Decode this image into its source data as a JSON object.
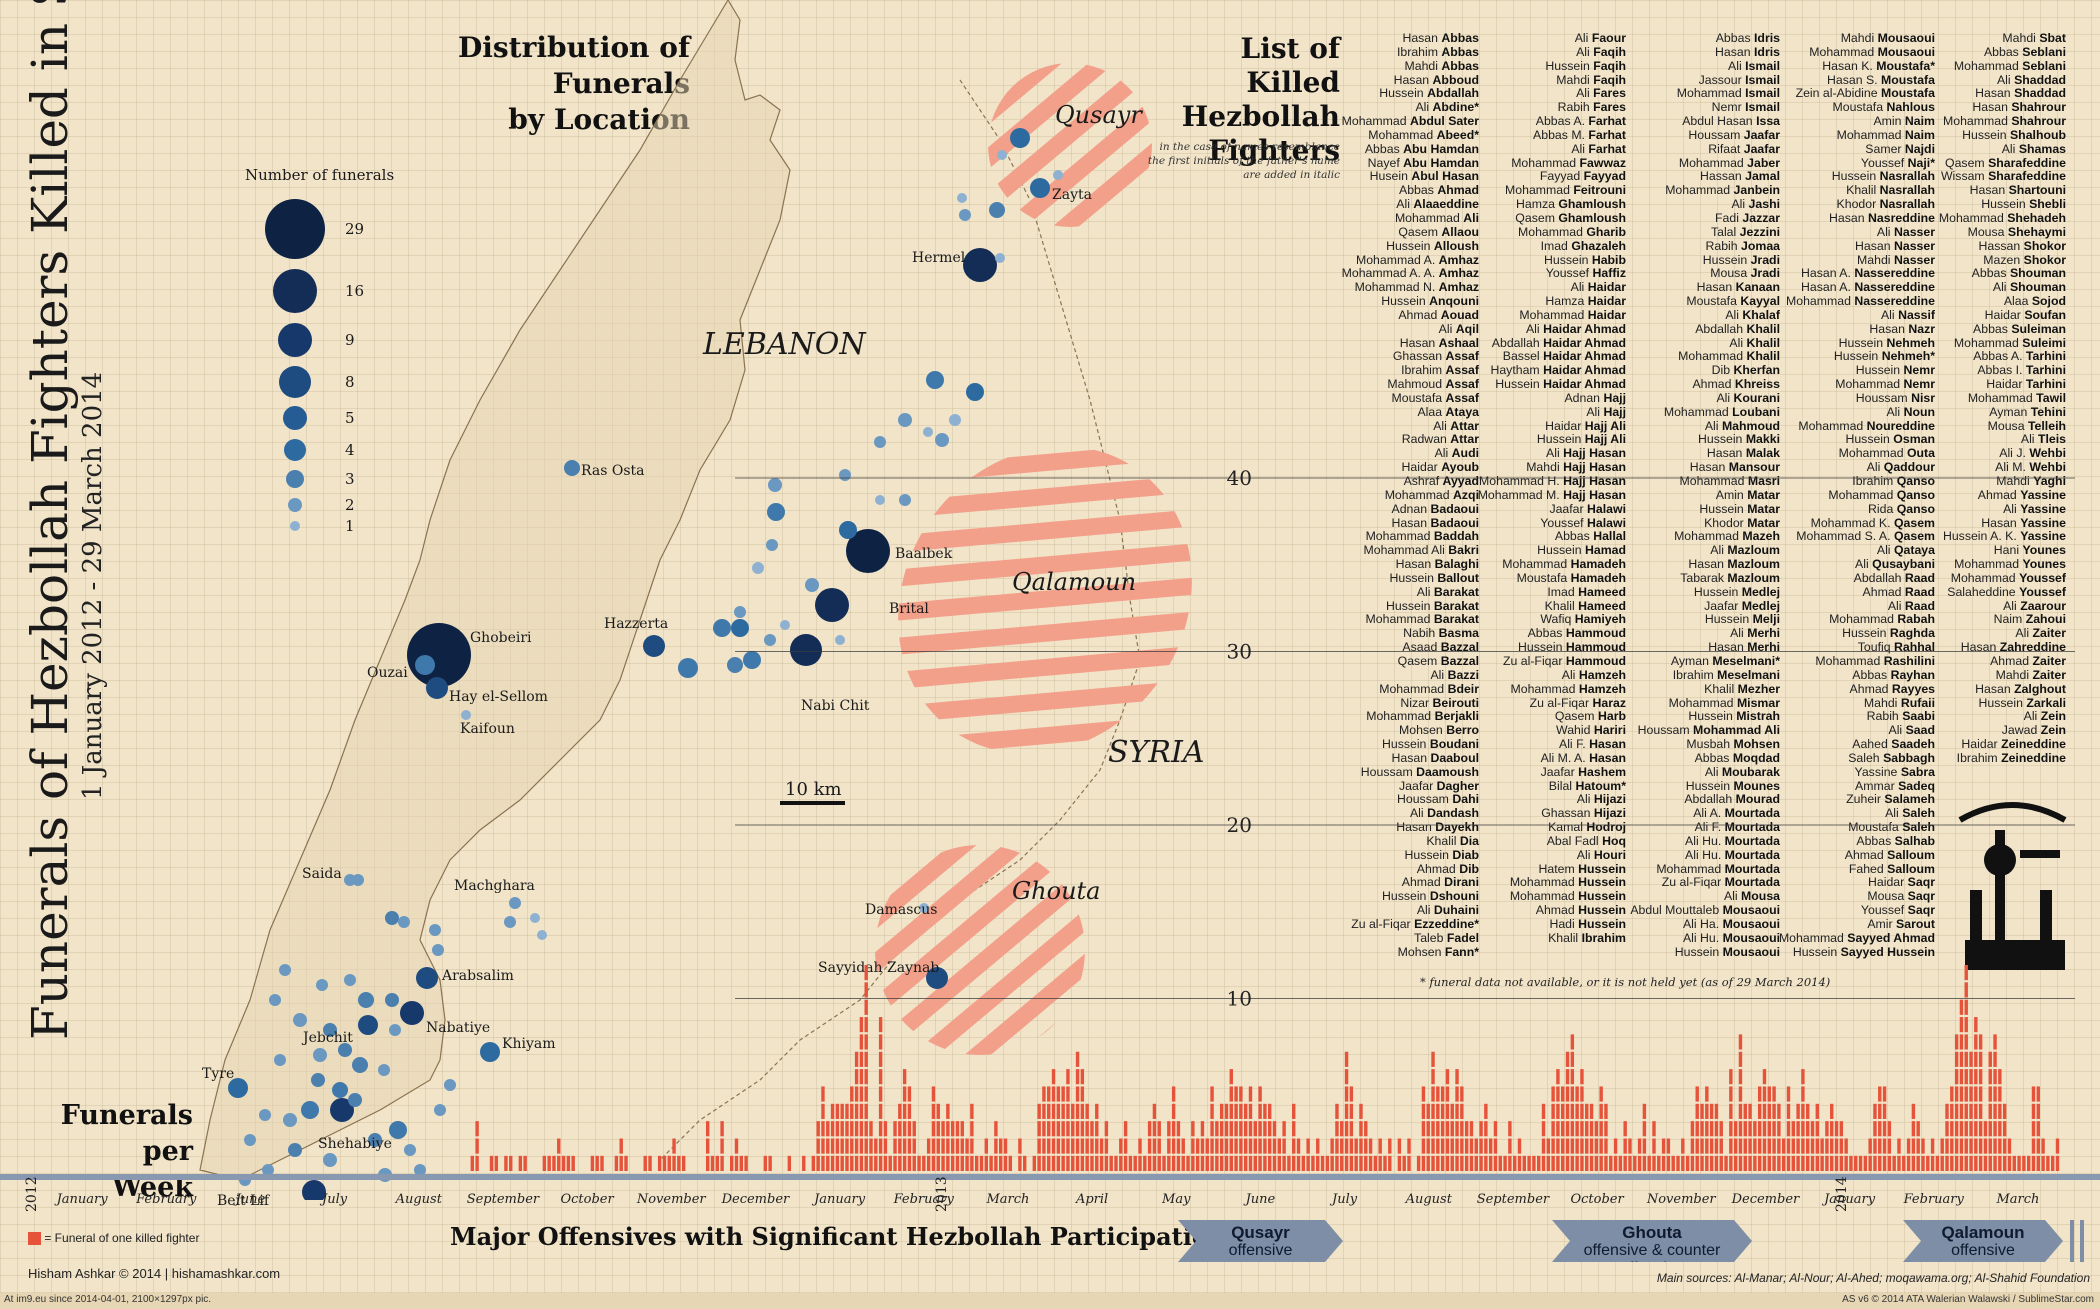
{
  "title": "Funerals of Hezbollah Fighters Killed in Syria",
  "subtitle": "1 January 2012 - 29 March 2014",
  "map": {
    "heading_line1": "Distribution of Funerals",
    "heading_line2": "by Location",
    "legend_title": "Number of funerals",
    "legend_values": [
      "29",
      "16",
      "9",
      "8",
      "5",
      "4",
      "3",
      "2",
      "1"
    ],
    "country_labels": [
      "LEBANON",
      "SYRIA"
    ],
    "region_labels": [
      "Qusayr",
      "Qalamoun",
      "Ghouta"
    ],
    "place_labels": [
      "Zayta",
      "Hermel",
      "Ras Osta",
      "Baalbek",
      "Hazzerta",
      "Brital",
      "Ghobeiri",
      "Ouzai",
      "Hay el-Sellom",
      "Kaifoun",
      "Nabi Chit",
      "Damascus",
      "Sayyidah Zaynab",
      "Saida",
      "Machghara",
      "Arabsalim",
      "Jebchit",
      "Nabatiye",
      "Khiyam",
      "Tyre",
      "Shehabiye",
      "Beit Lif"
    ],
    "scale_label": "10 km"
  },
  "list": {
    "heading_line1": "List of Killed",
    "heading_line2": "Hezbollah",
    "heading_line3": "Fighters",
    "note_line1": "in the case of names resemblance",
    "note_line2": "the first initials of the father's name",
    "note_line3": "are added in italic",
    "footnote": "* funeral data not available, or it is not held yet (as of 29 March 2014)",
    "columns": [
      [
        "Hasan|Abbas",
        "Ibrahim|Abbas",
        "Mahdi|Abbas",
        "Hasan|Abboud",
        "Hussein|Abdallah",
        "Ali|Abdine|*",
        "Mohammad|Abdul Sater",
        "Mohammad|Abeed|*",
        "Abbas|Abu Hamdan",
        "Nayef|Abu Hamdan",
        "Husein|Abul Hasan",
        "Abbas|Ahmad",
        "Ali|Alaaeddine",
        "Mohammad|Ali",
        "Qasem|Allaou",
        "Hussein|Alloush",
        "Mohammad A.|Amhaz",
        "Mohammad A. A.|Amhaz",
        "Mohammad N.|Amhaz",
        "Hussein|Anqouni",
        "Ahmad|Aouad",
        "Ali|Aqil",
        "Hasan|Ashaal",
        "Ghassan|Assaf",
        "Ibrahim|Assaf",
        "Mahmoud|Assaf",
        "Moustafa|Assaf",
        "Alaa|Ataya",
        "Ali|Attar",
        "Radwan|Attar",
        "Ali|Audi",
        "Haidar|Ayoub",
        "Ashraf|Ayyad",
        "Mohammad|Azqi",
        "Adnan|Badaoui",
        "Hasan|Badaoui",
        "Mohammad|Baddah",
        "Mohammad Ali|Bakri",
        "Hasan|Balaghi",
        "Hussein|Ballout",
        "Ali|Barakat",
        "Hussein|Barakat",
        "Mohammad|Barakat",
        "Nabih|Basma",
        "Asaad|Bazzal",
        "Qasem|Bazzal",
        "Ali|Bazzi",
        "Mohammad|Bdeir",
        "Nizar|Beirouti",
        "Mohammad|Berjakli",
        "Mohsen|Berro",
        "Hussein|Boudani",
        "Hasan|Daaboul",
        "Houssam|Daamoush",
        "Jaafar|Dagher",
        "Houssam|Dahi",
        "Ali|Dandash",
        "Hasan|Dayekh",
        "Khalil|Dia",
        "Hussein|Diab",
        "Ahmad|Dib",
        "Ahmad|Dirani",
        "Hussein|Dshouni",
        "Ali|Duhaini",
        "Zu al-Fiqar|Ezzeddine|*",
        "Taleb|Fadel",
        "Mohsen|Fann|*"
      ],
      [
        "Ali|Faour",
        "Ali|Faqih",
        "Hussein|Faqih",
        "Mahdi|Faqih",
        "Ali|Fares",
        "Rabih|Fares",
        "Abbas A.|Farhat",
        "Abbas M.|Farhat",
        "Ali|Farhat",
        "Mohammad|Fawwaz",
        "Fayyad|Fayyad",
        "Mohammad|Feitrouni",
        "Hamza|Ghamloush",
        "Qasem|Ghamloush",
        "Mohammad|Gharib",
        "Imad|Ghazaleh",
        "Hussein|Habib",
        "Youssef|Haffiz",
        "Ali|Haidar",
        "Hamza|Haidar",
        "Mohammad|Haidar",
        "Ali|Haidar Ahmad",
        "Abdallah|Haidar Ahmad",
        "Bassel|Haidar Ahmad",
        "Haytham|Haidar Ahmad",
        "Hussein|Haidar Ahmad",
        "Adnan|Hajj",
        "Ali|Hajj",
        "Haidar|Hajj Ali",
        "Hussein|Hajj Ali",
        "Ali|Hajj Hasan",
        "Mahdi|Hajj Hasan",
        "Mohammad H.|Hajj Hasan",
        "Mohammad M.|Hajj Hasan",
        "Jaafar|Halawi",
        "Youssef|Halawi",
        "Abbas|Hallal",
        "Hussein|Hamad",
        "Mohammad|Hamadeh",
        "Moustafa|Hamadeh",
        "Imad|Hameed",
        "Khalil|Hameed",
        "Wafiq|Hamiyeh",
        "Abbas|Hammoud",
        "Hussein|Hammoud",
        "Zu al-Fiqar|Hammoud",
        "Ali|Hamzeh",
        "Mohammad|Hamzeh",
        "Zu al-Fiqar|Haraz",
        "Qasem|Harb",
        "Wahid|Hariri",
        "Ali F.|Hasan",
        "Ali M. A.|Hasan",
        "Jaafar|Hashem",
        "Bilal|Hatoum|*",
        "Ali|Hijazi",
        "Ghassan|Hijazi",
        "Kamal|Hodroj",
        "Abal Fadl|Hoq",
        "Ali|Houri",
        "Hatem|Hussein",
        "Mohammad|Hussein",
        "Mohammad|Hussein",
        "Ahmad|Hussein",
        "Hadi|Hussein",
        "Khalil|Ibrahim"
      ],
      [
        "Abbas|Idris",
        "Hasan|Idris",
        "Ali|Ismail",
        "Jassour|Ismail",
        "Mohammad|Ismail",
        "Nemr|Ismail",
        "Abdul Hasan|Issa",
        "Houssam|Jaafar",
        "Rifaat|Jaafar",
        "Mohammad|Jaber",
        "Hassan|Jamal",
        "Mohammad|Janbein",
        "Ali|Jashi",
        "Fadi|Jazzar",
        "Talal|Jezzini",
        "Rabih|Jomaa",
        "Hussein|Jradi",
        "Mousa|Jradi",
        "Hasan|Kanaan",
        "Moustafa|Kayyal",
        "Ali|Khalaf",
        "Abdallah|Khalil",
        "Ali|Khalil",
        "Mohammad|Khalil",
        "Dib|Kherfan",
        "Ahmad|Khreiss",
        "Ali|Kourani",
        "Mohammad|Loubani",
        "Ali|Mahmoud",
        "Hussein|Makki",
        "Hasan|Malak",
        "Hasan|Mansour",
        "Mohammad|Masri",
        "Amin|Matar",
        "Hussein|Matar",
        "Khodor|Matar",
        "Mohammad|Mazeh",
        "Ali|Mazloum",
        "Hasan|Mazloum",
        "Tabarak|Mazloum",
        "Hussein|Medlej",
        "Jaafar|Medlej",
        "Hussein|Melji",
        "Ali|Merhi",
        "Hasan|Merhi",
        "Ayman|Meselmani|*",
        "Ibrahim|Meselmani",
        "Khalil|Mezher",
        "Mohammad|Mismar",
        "Hussein|Mistrah",
        "Houssam|Mohammad Ali",
        "Musbah|Mohsen",
        "Abbas|Moqdad",
        "Ali|Moubarak",
        "Hussein|Mounes",
        "Abdallah|Mourad",
        "Ali A.|Mourtada",
        "Ali F.|Mourtada",
        "Ali Hu.|Mourtada",
        "Ali Hu.|Mourtada",
        "Mohammad|Mourtada",
        "Zu al-Fiqar|Mourtada",
        "Ali|Mousa",
        "Abdul Mouttaleb|Mousaoui",
        "Ali Ha.|Mousaoui",
        "Ali Hu.|Mousaoui",
        "Hussein|Mousaoui"
      ],
      [
        "Mahdi|Mousaoui",
        "Mohammad|Mousaoui",
        "Hasan K.|Moustafa|*",
        "Hasan S.|Moustafa",
        "Zein al-Abidine|Moustafa",
        "Moustafa|Nahlous",
        "Amin|Naim",
        "Mohammad|Naim",
        "Samer|Najdi",
        "Youssef|Naji|*",
        "Hussein|Nasrallah",
        "Khalil|Nasrallah",
        "Khodor|Nasrallah",
        "Hasan|Nasreddine",
        "Ali|Nasser",
        "Hasan|Nasser",
        "Mahdi|Nasser",
        "Hasan A.|Nassereddine",
        "Hasan A.|Nassereddine",
        "Mohammad|Nassereddine",
        "Ali|Nassif",
        "Hasan|Nazr",
        "Hussein|Nehmeh",
        "Hussein|Nehmeh|*",
        "Hussein|Nemr",
        "Mohammad|Nemr",
        "Houssam|Nisr",
        "Ali|Noun",
        "Mohammad|Noureddine",
        "Hussein|Osman",
        "Mohammad|Outa",
        "Ali|Qaddour",
        "Ibrahim|Qanso",
        "Mohammad|Qanso",
        "Rida|Qanso",
        "Mohammad K.|Qasem",
        "Mohammad S. A.|Qasem",
        "Ali|Qataya",
        "Ali|Qusaybani",
        "Abdallah|Raad",
        "Ahmad|Raad",
        "Ali|Raad",
        "Mohammad|Rabah",
        "Hussein|Raghda",
        "Toufiq|Rahhal",
        "Mohammad|Rashilini",
        "Abbas|Rayhan",
        "Ahmad|Rayyes",
        "Mahdi|Rufaii",
        "Rabih|Saabi",
        "Ali|Saad",
        "Aahed|Saadeh",
        "Saleh|Sabbagh",
        "Yassine|Sabra",
        "Ammar|Sadeq",
        "Zuheir|Salameh",
        "Ali|Saleh",
        "Moustafa|Saleh",
        "Abbas|Salhab",
        "Ahmad|Salloum",
        "Fahed|Salloum",
        "Haidar|Saqr",
        "Mousa|Saqr",
        "Youssef|Saqr",
        "Amir|Sarout",
        "Mohammad|Sayyed Ahmad",
        "Hussein|Sayyed Hussein"
      ],
      [
        "Mahdi|Sbat",
        "Abbas|Seblani",
        "Mohammad|Seblani",
        "Ali|Shaddad",
        "Hasan|Shaddad",
        "Hasan|Shahrour",
        "Mohammad|Shahrour",
        "Hussein|Shalhoub",
        "Ali|Shamas",
        "Qasem|Sharafeddine",
        "Wissam|Sharafeddine",
        "Hasan|Shartouni",
        "Hussein|Shebli",
        "Mohammad|Shehadeh",
        "Mousa|Shehaymi",
        "Hassan|Shokor",
        "Mazen|Shokor",
        "Abbas|Shouman",
        "Ali|Shouman",
        "Alaa|Sojod",
        "Haidar|Soufan",
        "Abbas|Suleiman",
        "Mohammad|Suleimi",
        "Abbas A.|Tarhini",
        "Abbas I.|Tarhini",
        "Haidar|Tarhini",
        "Mohammad|Tawil",
        "Ayman|Tehini",
        "Mousa|Telleih",
        "Ali|Tleis",
        "Ali J.|Wehbi",
        "Ali M.|Wehbi",
        "Mahdi|Yaghi",
        "Ahmad|Yassine",
        "Ali|Yassine",
        "Hasan|Yassine",
        "Hussein A. K.|Yassine",
        "Hani|Younes",
        "Mohammad|Younes",
        "Mohammad|Youssef",
        "Salaheddine|Youssef",
        "Ali|Zaarour",
        "Naim|Zahoui",
        "Ali|Zaiter",
        "Hasan|Zahreddine",
        "Ahmad|Zaiter",
        "Mahdi|Zaiter",
        "Hasan|Zalghout",
        "Hussein|Zarkali",
        "Ali|Zein",
        "Jawad|Zein",
        "Haidar|Zeineddine",
        "Ibrahim|Zeineddine"
      ]
    ]
  },
  "weekly": {
    "heading_line1": "Funerals per",
    "heading_line2": "Week",
    "legend": "= Funeral of one killed fighter",
    "offensives_heading": "Major Offensives  with Significant Hezbollah Participation",
    "offensives": [
      {
        "name": "Qusayr",
        "kind": "offensive"
      },
      {
        "name": "Ghouta",
        "kind": "offensive & counter offensive"
      },
      {
        "name": "Qalamoun",
        "kind": "offensive"
      }
    ]
  },
  "chart_data": {
    "type": "bar",
    "title": "Funerals per Week",
    "ylim": [
      0,
      46
    ],
    "y_ticks": [
      "10",
      "20",
      "30",
      "40"
    ],
    "year_labels": [
      "2012",
      "2013",
      "2014"
    ],
    "month_labels": [
      "January",
      "February",
      "June",
      "July",
      "August",
      "September",
      "October",
      "November",
      "December",
      "January",
      "February",
      "March",
      "April",
      "May",
      "June",
      "July",
      "August",
      "September",
      "October",
      "November",
      "December",
      "January",
      "February",
      "March"
    ],
    "values": [
      1,
      3,
      0,
      0,
      1,
      1,
      0,
      1,
      1,
      0,
      1,
      1,
      0,
      0,
      0,
      1,
      1,
      1,
      2,
      1,
      1,
      1,
      0,
      0,
      0,
      1,
      1,
      1,
      0,
      0,
      1,
      2,
      1,
      0,
      0,
      0,
      1,
      1,
      0,
      1,
      1,
      1,
      2,
      1,
      1,
      0,
      0,
      0,
      0,
      3,
      1,
      1,
      3,
      0,
      1,
      2,
      1,
      1,
      0,
      0,
      0,
      1,
      1,
      0,
      0,
      0,
      1,
      0,
      0,
      1,
      0,
      1,
      3,
      5,
      3,
      4,
      4,
      4,
      4,
      5,
      7,
      9,
      12,
      3,
      2,
      9,
      3,
      1,
      3,
      4,
      6,
      5,
      3,
      1,
      1,
      2,
      5,
      4,
      3,
      4,
      3,
      3,
      3,
      2,
      4,
      1,
      1,
      2,
      1,
      3,
      2,
      2,
      1,
      0,
      2,
      1,
      0,
      1,
      4,
      5,
      5,
      6,
      5,
      5,
      6,
      4,
      7,
      6,
      4,
      3,
      4,
      2,
      3,
      1,
      1,
      2,
      3,
      1,
      1,
      2,
      1,
      3,
      4,
      3,
      1,
      3,
      5,
      3,
      2,
      1,
      3,
      2,
      3,
      2,
      5,
      3,
      4,
      4,
      6,
      5,
      5,
      4,
      5,
      3,
      5,
      4,
      4,
      3,
      2,
      3,
      1,
      4,
      2,
      1,
      2,
      1,
      2,
      1,
      1,
      2,
      4,
      3,
      7,
      5,
      2,
      4,
      3,
      2,
      1,
      2,
      1,
      2,
      0,
      2,
      1,
      2,
      0,
      1,
      5,
      4,
      7,
      5,
      5,
      6,
      4,
      6,
      5,
      3,
      3,
      2,
      3,
      4,
      2,
      3,
      1,
      1,
      3,
      1,
      2,
      1,
      1,
      1,
      1,
      4,
      2,
      5,
      6,
      5,
      7,
      8,
      5,
      6,
      4,
      4,
      3,
      5,
      4,
      1,
      2,
      1,
      3,
      2,
      1,
      2,
      4,
      1,
      3,
      1,
      2,
      2,
      1,
      1,
      2,
      1,
      3,
      5,
      4,
      5,
      4,
      4,
      3,
      1,
      6,
      3,
      8,
      4,
      4,
      3,
      5,
      6,
      5,
      5,
      4,
      2,
      5,
      3,
      4,
      6,
      4,
      3,
      4,
      2,
      3,
      4,
      3,
      3,
      2,
      1,
      1,
      1,
      1,
      2,
      4,
      5,
      5,
      3,
      1,
      2,
      1,
      2,
      4,
      3,
      2,
      1,
      2,
      1,
      2,
      4,
      5,
      8,
      10,
      12,
      7,
      9,
      8,
      3,
      7,
      8,
      6,
      4,
      2,
      1,
      1,
      1,
      1,
      5,
      5,
      2,
      1,
      1,
      2
    ]
  },
  "credits": {
    "author": "Hisham Ashkar © 2014  |  hishamashkar.com",
    "sources": "Main sources: Al-Manar; Al-Nour; Al-Ahed;  moqawama.org; Al-Shahid Foundation",
    "host": "At im9.eu  since 2014-04-01, 2100×1297px pic.",
    "version": "AS v6 © 2014 ATA Walerian Walawski / SublimeStar.com"
  }
}
